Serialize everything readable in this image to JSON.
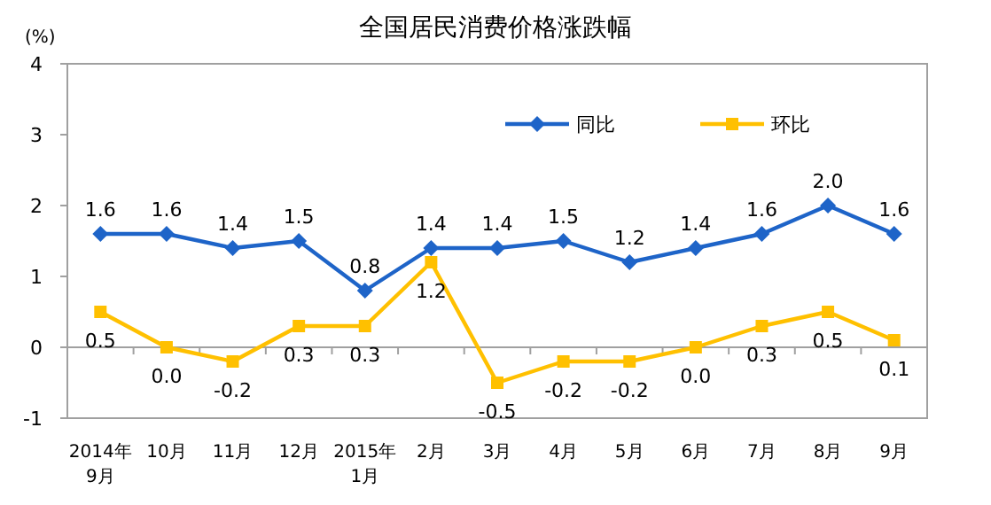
{
  "chart_data": {
    "type": "line",
    "title": "全国居民消费价格涨跌幅",
    "ylabel": "(%)",
    "categories": [
      "2014年\n9月",
      "10月",
      "11月",
      "12月",
      "2015年\n1月",
      "2月",
      "3月",
      "4月",
      "5月",
      "6月",
      "7月",
      "8月",
      "9月"
    ],
    "series": [
      {
        "name": "同比",
        "color": "#1e64c8",
        "marker": "diamond",
        "values": [
          1.6,
          1.6,
          1.4,
          1.5,
          0.8,
          1.4,
          1.4,
          1.5,
          1.2,
          1.4,
          1.6,
          2.0,
          1.6
        ],
        "value_labels": [
          "1.6",
          "1.6",
          "1.4",
          "1.5",
          "0.8",
          "1.4",
          "1.4",
          "1.5",
          "1.2",
          "1.4",
          "1.6",
          "2.0",
          "1.6"
        ]
      },
      {
        "name": "环比",
        "color": "#ffc000",
        "marker": "square",
        "values": [
          0.5,
          0.0,
          -0.2,
          0.3,
          0.3,
          1.2,
          -0.5,
          -0.2,
          -0.2,
          0.0,
          0.3,
          0.5,
          0.1
        ],
        "value_labels": [
          "0.5",
          "0.0",
          "-0.2",
          "0.3",
          "0.3",
          "1.2",
          "-0.5",
          "-0.2",
          "-0.2",
          "0.0",
          "0.3",
          "0.5",
          "0.1"
        ]
      }
    ],
    "ylim": [
      -1,
      4
    ],
    "yticks": [
      -1,
      0,
      1,
      2,
      3,
      4
    ],
    "legend": "top right",
    "line_style": "solid"
  }
}
